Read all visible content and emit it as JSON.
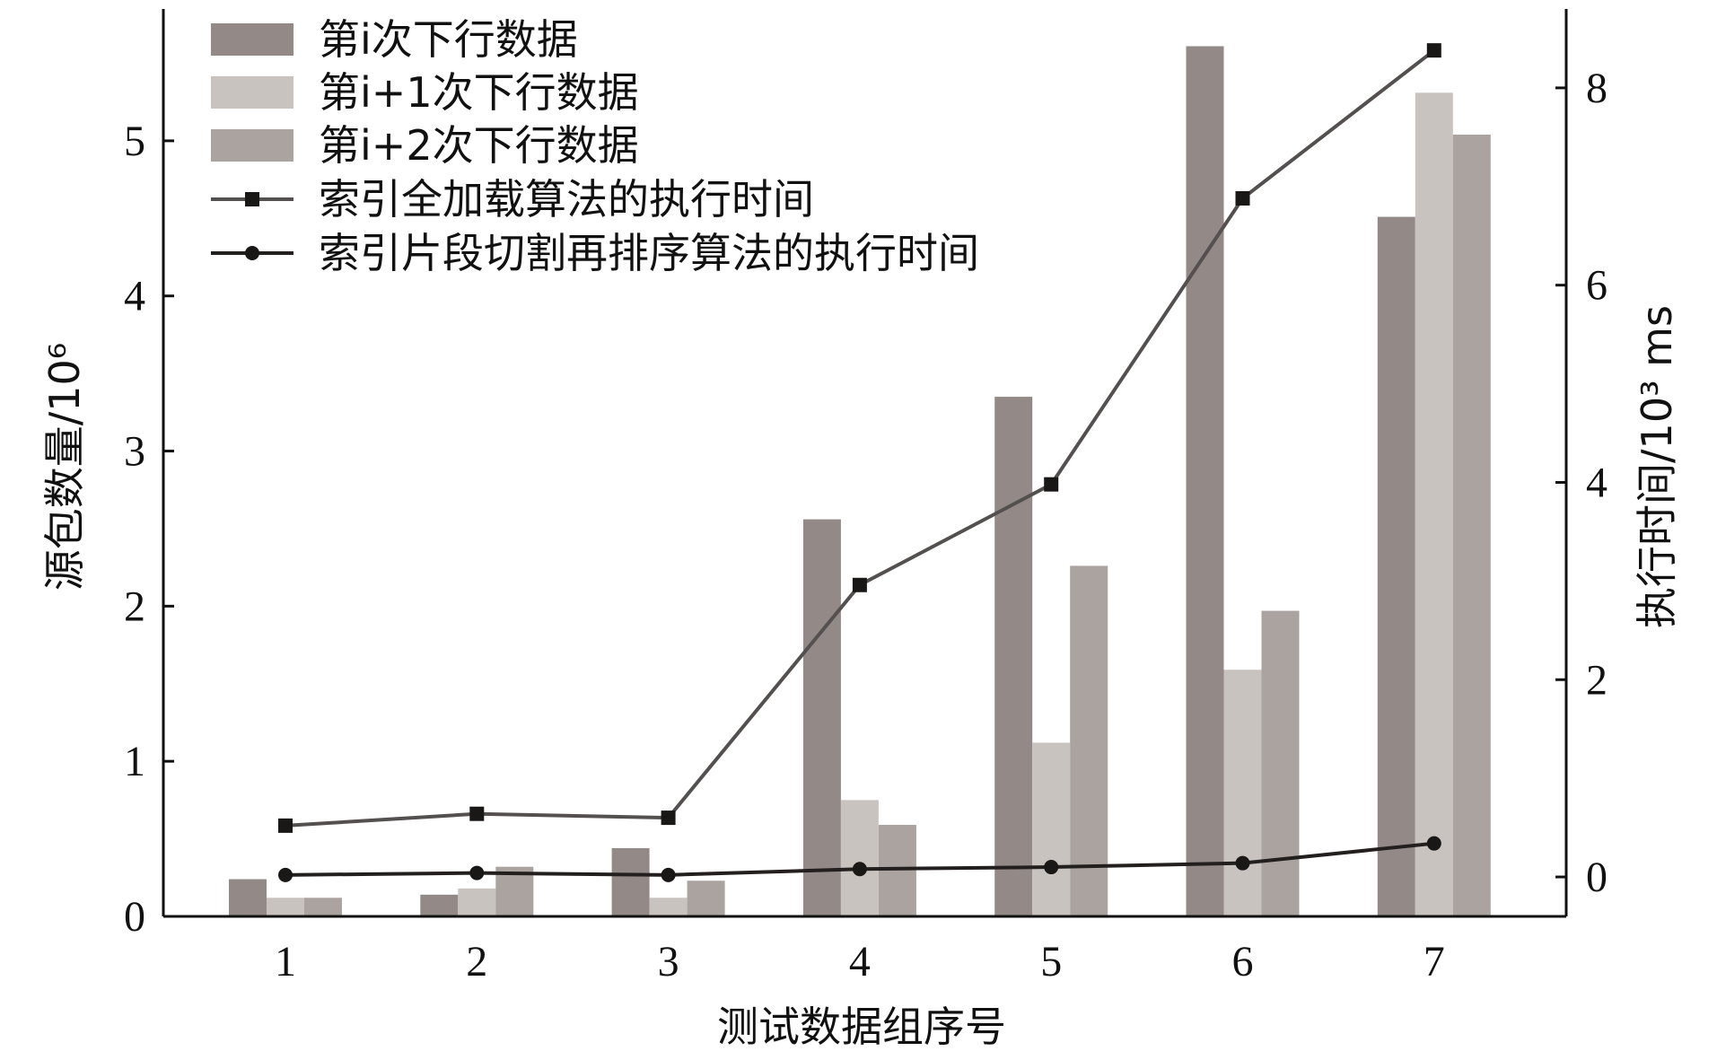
{
  "chart_data": {
    "type": "bar",
    "categories": [
      "1",
      "2",
      "3",
      "4",
      "5",
      "6",
      "7"
    ],
    "xlabel": "测试数据组序号",
    "ylabel_left": "源包数量/10⁶",
    "ylabel_right": "执行时间/10³ ms",
    "ylim_left": [
      0,
      5.85
    ],
    "ylim_right": [
      -0.4,
      8.8
    ],
    "yticks_left": [
      "0",
      "1",
      "2",
      "3",
      "4",
      "5"
    ],
    "yticks_right": [
      "0",
      "2",
      "4",
      "6",
      "8"
    ],
    "legend_position": "top-left",
    "bar_series": [
      {
        "name": "第i次下行数据",
        "values": [
          0.24,
          0.14,
          0.44,
          2.56,
          3.35,
          5.61,
          4.51
        ],
        "color": "#938a87"
      },
      {
        "name": "第i+1次下行数据",
        "values": [
          0.12,
          0.18,
          0.12,
          0.75,
          1.12,
          1.59,
          5.31
        ],
        "color": "#c9c3c0"
      },
      {
        "name": "第i+2次下行数据",
        "values": [
          0.12,
          0.32,
          0.23,
          0.59,
          2.26,
          1.97,
          5.04
        ],
        "color": "#aaa3a0"
      }
    ],
    "line_series": [
      {
        "name": "索引全加载算法的执行时间",
        "axis": "right",
        "marker": "square",
        "values": [
          0.52,
          0.64,
          0.6,
          2.96,
          3.98,
          6.88,
          8.38
        ],
        "color": "#555050"
      },
      {
        "name": "索引片段切割再排序算法的执行时间",
        "axis": "right",
        "marker": "circle",
        "values": [
          0.02,
          0.04,
          0.02,
          0.08,
          0.1,
          0.14,
          0.34
        ],
        "color": "#231f1f"
      }
    ]
  }
}
